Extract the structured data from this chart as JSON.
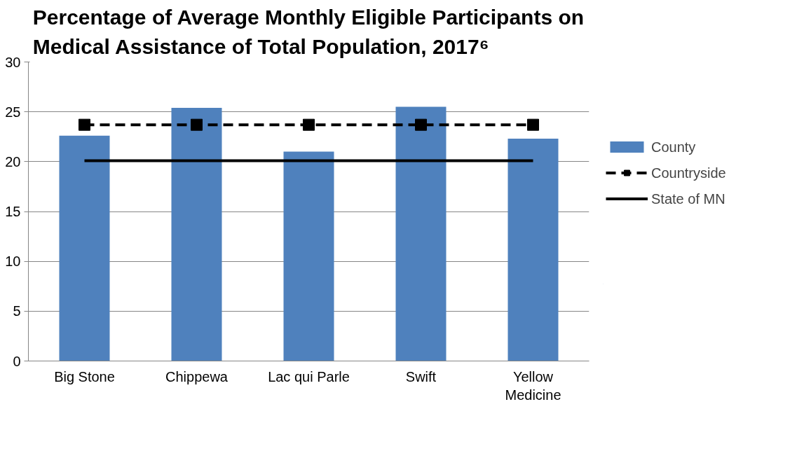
{
  "chart_data": {
    "type": "bar",
    "title": "Percentage of Average Monthly Eligible Participants on Medical Assistance  of Total Population, 2017⁶",
    "categories": [
      "Big Stone",
      "Chippewa",
      "Lac qui Parle",
      "Swift",
      "Yellow Medicine"
    ],
    "series": [
      {
        "name": "County",
        "color": "#4f81bd",
        "values": [
          22.6,
          25.4,
          21.0,
          25.5,
          22.3
        ]
      },
      {
        "name": "Countryside",
        "type": "line",
        "color": "#000000",
        "marker": "square",
        "line_style": "dashed",
        "values": [
          23.7,
          23.7,
          23.7,
          23.7,
          23.7
        ]
      },
      {
        "name": "State of MN",
        "type": "line",
        "color": "#000000",
        "marker": "none",
        "line_style": "solid",
        "values": [
          20.1,
          20.1,
          20.1,
          20.1,
          20.1
        ]
      }
    ],
    "ylim": [
      0,
      30
    ],
    "yticks": [
      0,
      5,
      10,
      15,
      20,
      25,
      30
    ],
    "grid": "y",
    "legend": "right"
  }
}
